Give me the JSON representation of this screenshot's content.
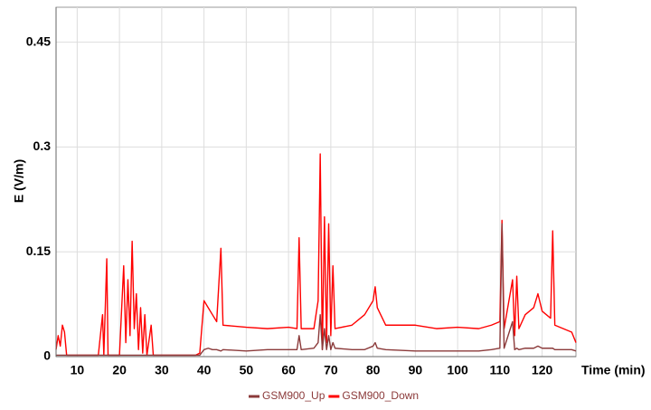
{
  "chart_data": {
    "type": "line",
    "y_label": "E  (V/m)",
    "x_label": "Time (min)",
    "xlim": [
      5,
      128
    ],
    "xticks": [
      10,
      20,
      30,
      40,
      50,
      60,
      70,
      80,
      90,
      100,
      110,
      120
    ],
    "ylim": [
      0,
      0.5
    ],
    "yticks": [
      0,
      0.15,
      0.3,
      0.45
    ],
    "grid": true,
    "legend": "bottom",
    "x": [
      5,
      5.5,
      6,
      6.5,
      7,
      7.5,
      10,
      15,
      16,
      16.3,
      17,
      17.3,
      20,
      21,
      21.5,
      22,
      22.5,
      23,
      23.5,
      24,
      24.5,
      25,
      25.5,
      26,
      26.5,
      27.5,
      28,
      38,
      39,
      40,
      41,
      42,
      43,
      44,
      44.5,
      50,
      55,
      60,
      62,
      62.5,
      63,
      66,
      67,
      67.5,
      68,
      68.5,
      69,
      69.5,
      70,
      70.5,
      71,
      75,
      78,
      80,
      80.5,
      81,
      83,
      90,
      95,
      100,
      105,
      108,
      110,
      110.5,
      111,
      113,
      113.5,
      114,
      114.5,
      116,
      118,
      119,
      120,
      122,
      122.5,
      123,
      125,
      127,
      128
    ],
    "series": [
      {
        "name": "GSM900_Down",
        "color": "#ff0000",
        "values": [
          0.01,
          0.03,
          0.015,
          0.045,
          0.035,
          0.002,
          0.002,
          0.002,
          0.06,
          0.002,
          0.14,
          0.002,
          0.002,
          0.13,
          0.02,
          0.11,
          0.03,
          0.165,
          0.04,
          0.09,
          0.01,
          0.07,
          0.005,
          0.06,
          0.002,
          0.045,
          0.002,
          0.002,
          0.005,
          0.08,
          0.07,
          0.06,
          0.05,
          0.155,
          0.045,
          0.042,
          0.04,
          0.042,
          0.04,
          0.17,
          0.04,
          0.04,
          0.08,
          0.29,
          0.01,
          0.2,
          0.02,
          0.19,
          0.03,
          0.13,
          0.04,
          0.045,
          0.06,
          0.08,
          0.1,
          0.07,
          0.045,
          0.045,
          0.04,
          0.042,
          0.04,
          0.045,
          0.05,
          0.195,
          0.04,
          0.11,
          0.03,
          0.115,
          0.04,
          0.06,
          0.07,
          0.09,
          0.065,
          0.055,
          0.18,
          0.045,
          0.04,
          0.035,
          0.02
        ]
      },
      {
        "name": "GSM900_Up",
        "color": "#8b3a3a",
        "values": [
          0.002,
          0.002,
          0.002,
          0.002,
          0.002,
          0.002,
          0.002,
          0.002,
          0.002,
          0.002,
          0.002,
          0.002,
          0.002,
          0.002,
          0.002,
          0.002,
          0.002,
          0.002,
          0.002,
          0.002,
          0.002,
          0.002,
          0.002,
          0.002,
          0.002,
          0.002,
          0.002,
          0.002,
          0.002,
          0.01,
          0.012,
          0.01,
          0.01,
          0.008,
          0.01,
          0.008,
          0.01,
          0.01,
          0.01,
          0.03,
          0.01,
          0.012,
          0.02,
          0.06,
          0.01,
          0.04,
          0.01,
          0.03,
          0.01,
          0.02,
          0.012,
          0.01,
          0.01,
          0.015,
          0.02,
          0.012,
          0.01,
          0.008,
          0.008,
          0.008,
          0.008,
          0.01,
          0.012,
          0.19,
          0.012,
          0.05,
          0.01,
          0.012,
          0.01,
          0.012,
          0.012,
          0.015,
          0.012,
          0.012,
          0.012,
          0.01,
          0.01,
          0.01,
          0.008
        ]
      }
    ]
  }
}
